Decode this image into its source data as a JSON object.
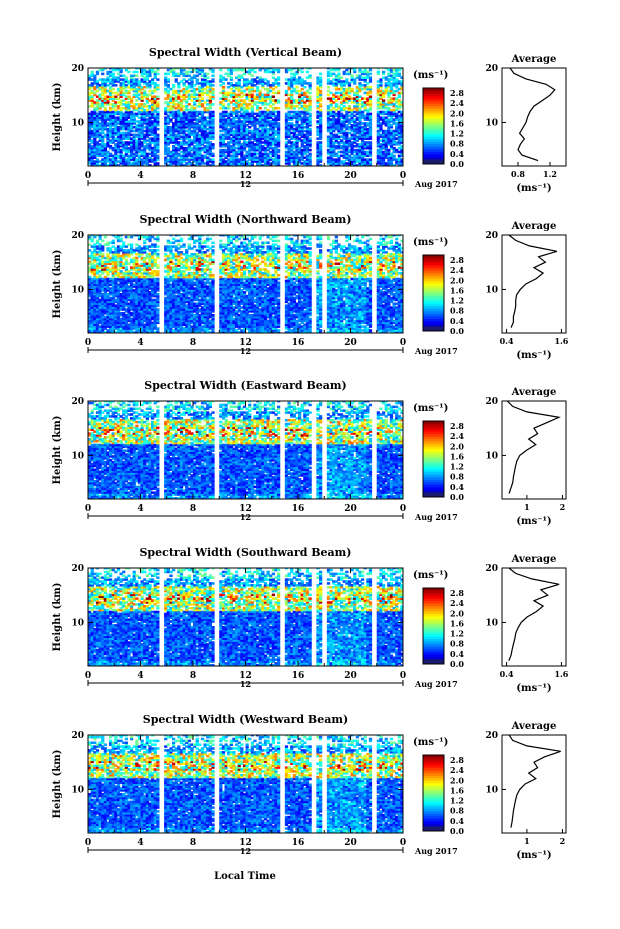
{
  "figure": {
    "xlabel_bottom": "Local Time",
    "date_label": "Aug 2017",
    "day_label": "12",
    "ylabel": "Height (km)",
    "colorbar_unit": "(ms⁻¹)",
    "profile_title": "Average",
    "profile_xlabel": "(ms⁻¹)"
  },
  "colorbar": {
    "ticks": [
      "0.0",
      "0.4",
      "0.8",
      "1.2",
      "1.6",
      "2.0",
      "2.4",
      "2.8"
    ],
    "range": [
      0,
      3.0
    ]
  },
  "chart_data": [
    {
      "type": "heatmap",
      "title": "Spectral Width (Vertical Beam)",
      "xlabel": "",
      "ylabel": "Height (km)",
      "x_ticks": [
        "0",
        "4",
        "8",
        "12",
        "16",
        "20",
        "0"
      ],
      "y_ticks": [
        "10",
        "20"
      ],
      "xlim": [
        0,
        24
      ],
      "ylim": [
        2,
        20
      ],
      "gaps_hours": [
        [
          5.4,
          5.9
        ],
        [
          9.6,
          10.0
        ],
        [
          14.6,
          15.0
        ],
        [
          16.9,
          17.3
        ],
        [
          17.8,
          18.2
        ],
        [
          21.6,
          22.0
        ]
      ],
      "profile": {
        "title": "Average",
        "xlabel": "(ms⁻¹)",
        "xticks": [
          "0.8",
          "1.2"
        ],
        "xlim": [
          0.6,
          1.4
        ],
        "height_km": [
          3,
          4,
          5,
          6,
          7,
          8,
          9,
          10,
          11,
          12,
          13,
          14,
          15,
          16,
          17,
          18,
          19,
          20
        ],
        "value": [
          1.05,
          0.85,
          0.8,
          0.83,
          0.88,
          0.82,
          0.86,
          0.9,
          0.92,
          0.95,
          1.0,
          1.1,
          1.2,
          1.26,
          1.15,
          0.9,
          0.75,
          0.7
        ]
      }
    },
    {
      "type": "heatmap",
      "title": "Spectral Width (Northward Beam)",
      "xlabel": "",
      "ylabel": "Height (km)",
      "x_ticks": [
        "0",
        "4",
        "8",
        "12",
        "16",
        "20",
        "0"
      ],
      "y_ticks": [
        "10",
        "20"
      ],
      "xlim": [
        0,
        24
      ],
      "ylim": [
        2,
        20
      ],
      "gaps_hours": [
        [
          5.4,
          5.9
        ],
        [
          9.6,
          10.0
        ],
        [
          14.6,
          15.0
        ],
        [
          16.9,
          17.3
        ],
        [
          17.8,
          18.2
        ],
        [
          21.6,
          22.0
        ]
      ],
      "profile": {
        "title": "Average",
        "xlabel": "(ms⁻¹)",
        "xticks": [
          "0.4",
          "1.6"
        ],
        "xlim": [
          0.3,
          1.7
        ],
        "height_km": [
          3,
          4,
          5,
          6,
          7,
          8,
          9,
          10,
          11,
          12,
          13,
          14,
          15,
          16,
          17,
          18,
          19,
          20
        ],
        "value": [
          0.5,
          0.55,
          0.55,
          0.58,
          0.6,
          0.6,
          0.62,
          0.7,
          0.82,
          1.05,
          1.2,
          1.0,
          1.25,
          1.1,
          1.5,
          0.9,
          0.6,
          0.45
        ]
      }
    },
    {
      "type": "heatmap",
      "title": "Spectral Width (Eastward Beam)",
      "xlabel": "",
      "ylabel": "Height (km)",
      "x_ticks": [
        "0",
        "4",
        "8",
        "12",
        "16",
        "20",
        "0"
      ],
      "y_ticks": [
        "10",
        "20"
      ],
      "xlim": [
        0,
        24
      ],
      "ylim": [
        2,
        20
      ],
      "gaps_hours": [
        [
          5.4,
          5.9
        ],
        [
          9.6,
          10.0
        ],
        [
          14.6,
          15.0
        ],
        [
          16.9,
          17.3
        ],
        [
          17.8,
          18.2
        ],
        [
          21.6,
          22.0
        ]
      ],
      "profile": {
        "title": "Average",
        "xlabel": "(ms⁻¹)",
        "xticks": [
          "1",
          "2"
        ],
        "xlim": [
          0.3,
          2.1
        ],
        "height_km": [
          3,
          4,
          5,
          6,
          7,
          8,
          9,
          10,
          11,
          12,
          13,
          14,
          15,
          16,
          17,
          18,
          19,
          20
        ],
        "value": [
          0.5,
          0.55,
          0.6,
          0.62,
          0.65,
          0.68,
          0.72,
          0.8,
          1.0,
          1.25,
          1.05,
          1.3,
          1.2,
          1.55,
          1.9,
          1.0,
          0.6,
          0.45
        ]
      }
    },
    {
      "type": "heatmap",
      "title": "Spectral Width (Southward Beam)",
      "xlabel": "",
      "ylabel": "Height (km)",
      "x_ticks": [
        "0",
        "4",
        "8",
        "12",
        "16",
        "20",
        "0"
      ],
      "y_ticks": [
        "10",
        "20"
      ],
      "xlim": [
        0,
        24
      ],
      "ylim": [
        2,
        20
      ],
      "gaps_hours": [
        [
          5.4,
          5.9
        ],
        [
          9.6,
          10.0
        ],
        [
          14.6,
          15.0
        ],
        [
          16.9,
          17.3
        ],
        [
          17.8,
          18.2
        ],
        [
          21.6,
          22.0
        ]
      ],
      "profile": {
        "title": "Average",
        "xlabel": "(ms⁻¹)",
        "xticks": [
          "0.4",
          "1.6"
        ],
        "xlim": [
          0.3,
          1.7
        ],
        "height_km": [
          3,
          4,
          5,
          6,
          7,
          8,
          9,
          10,
          11,
          12,
          13,
          14,
          15,
          16,
          17,
          18,
          19,
          20
        ],
        "value": [
          0.45,
          0.5,
          0.52,
          0.55,
          0.58,
          0.6,
          0.65,
          0.72,
          0.85,
          1.05,
          1.2,
          1.0,
          1.3,
          1.15,
          1.55,
          0.95,
          0.6,
          0.45
        ]
      }
    },
    {
      "type": "heatmap",
      "title": "Spectral Width (Westward Beam)",
      "xlabel": "Local Time",
      "ylabel": "Height (km)",
      "x_ticks": [
        "0",
        "4",
        "8",
        "12",
        "16",
        "20",
        "0"
      ],
      "y_ticks": [
        "10",
        "20"
      ],
      "xlim": [
        0,
        24
      ],
      "ylim": [
        2,
        20
      ],
      "gaps_hours": [
        [
          5.4,
          5.9
        ],
        [
          9.6,
          10.0
        ],
        [
          14.6,
          15.0
        ],
        [
          16.9,
          17.3
        ],
        [
          17.8,
          18.2
        ],
        [
          21.6,
          22.0
        ]
      ],
      "profile": {
        "title": "Average",
        "xlabel": "(ms⁻¹)",
        "xticks": [
          "1",
          "2"
        ],
        "xlim": [
          0.3,
          2.1
        ],
        "height_km": [
          3,
          4,
          5,
          6,
          7,
          8,
          9,
          10,
          11,
          12,
          13,
          14,
          15,
          16,
          17,
          18,
          19,
          20
        ],
        "value": [
          0.55,
          0.58,
          0.6,
          0.62,
          0.65,
          0.68,
          0.72,
          0.8,
          0.95,
          1.25,
          1.05,
          1.3,
          1.2,
          1.5,
          1.95,
          1.0,
          0.6,
          0.5
        ]
      }
    }
  ]
}
